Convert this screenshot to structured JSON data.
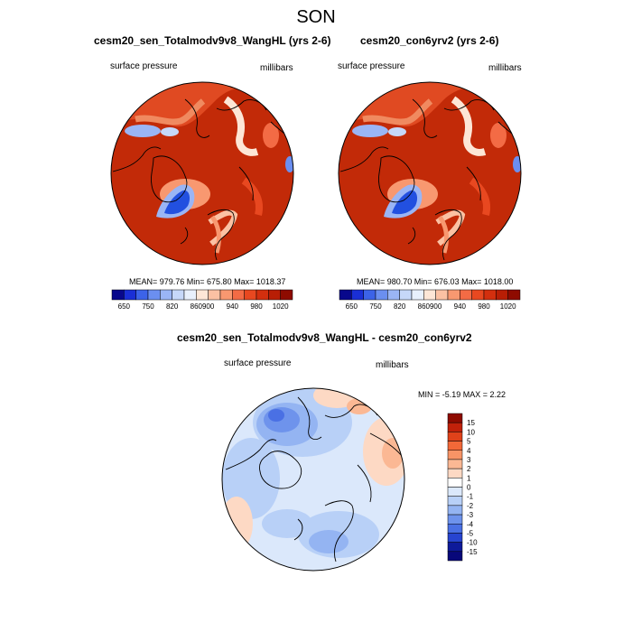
{
  "figure": {
    "title": "SON",
    "panels": [
      {
        "title": "cesm20_sen_Totalmodv9v8_WangHL (yrs 2-6)",
        "left_label": "surface pressure",
        "right_label": "millibars",
        "stats": "MEAN= 979.76  Min= 675.80  Max= 1018.37"
      },
      {
        "title": "cesm20_con6yrv2 (yrs 2-6)",
        "left_label": "surface pressure",
        "right_label": "millibars",
        "stats": "MEAN= 980.70  Min= 676.03  Max= 1018.00"
      },
      {
        "title": "cesm20_sen_Totalmodv9v8_WangHL - cesm20_con6yrv2",
        "left_label": "surface pressure",
        "right_label": "millibars",
        "stats": "MIN =  -5.19 MAX =   2.22"
      }
    ]
  },
  "colorbars": {
    "abs": {
      "ticks": [
        "650",
        "750",
        "820",
        "860",
        "900",
        "940",
        "980",
        "1020"
      ],
      "colors": [
        "#08088c",
        "#1a2fd6",
        "#3c63e8",
        "#6b8ff0",
        "#9ab5f5",
        "#c6d8f9",
        "#e8f0fc",
        "#fde6d6",
        "#fbc1a3",
        "#f89870",
        "#f36b45",
        "#e84820",
        "#d32f0e",
        "#b81e05",
        "#8e0b00"
      ]
    },
    "diff": {
      "ticks": [
        "15",
        "10",
        "5",
        "4",
        "3",
        "2",
        "1",
        "0",
        "-1",
        "-2",
        "-3",
        "-4",
        "-5",
        "-10",
        "-15"
      ],
      "colors": [
        "#8e0b00",
        "#c1210a",
        "#e0421a",
        "#f26838",
        "#f89466",
        "#fbb894",
        "#fdd9c4",
        "#ffffff",
        "#dbe8fb",
        "#b8d0f7",
        "#94b4f2",
        "#6e93ec",
        "#4a70e4",
        "#2744d0",
        "#0e1a9a",
        "#08087a"
      ]
    }
  },
  "colors": {
    "land_line": "#000000",
    "low_region": "#2250e0",
    "sea_high": "#c22a08"
  }
}
